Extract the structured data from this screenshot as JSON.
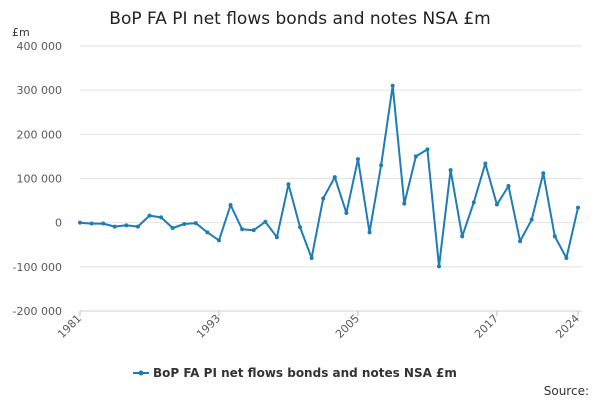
{
  "chart_data": {
    "type": "line",
    "title": "BoP FA PI net flows bonds and notes NSA £m",
    "unit_label": "£m",
    "source_label": "Source:",
    "ylim": [
      -200000,
      400000
    ],
    "yticks": [
      400000,
      300000,
      200000,
      100000,
      0,
      -100000,
      -200000
    ],
    "ytick_labels": [
      "400 000",
      "300 000",
      "200 000",
      "100 000",
      "0",
      "-100 000",
      "-200 000"
    ],
    "xlim": [
      1981,
      2024
    ],
    "xticks": [
      1981,
      1993,
      2005,
      2017,
      2024
    ],
    "xtick_labels": [
      "1981",
      "1993",
      "2005",
      "2017",
      "2024"
    ],
    "grid": true,
    "legend_position": "bottom",
    "color": "#1f7cb4",
    "series": [
      {
        "name": "BoP FA PI net flows bonds and notes NSA £m",
        "x": [
          1981,
          1982,
          1983,
          1984,
          1985,
          1986,
          1987,
          1988,
          1989,
          1990,
          1991,
          1992,
          1993,
          1994,
          1995,
          1996,
          1997,
          1998,
          1999,
          2000,
          2001,
          2002,
          2003,
          2004,
          2005,
          2006,
          2007,
          2008,
          2009,
          2010,
          2011,
          2012,
          2013,
          2014,
          2015,
          2016,
          2017,
          2018,
          2019,
          2020,
          2021,
          2022,
          2023,
          2024
        ],
        "values": [
          0,
          -2000,
          -2000,
          -9000,
          -6000,
          -9000,
          16000,
          12000,
          -12000,
          -3000,
          -1000,
          -22000,
          -40000,
          40000,
          -15000,
          -17000,
          2000,
          -33000,
          87000,
          -10000,
          -80000,
          55000,
          103000,
          22000,
          144000,
          -22000,
          130000,
          310000,
          43000,
          150000,
          166000,
          -99000,
          119000,
          -31000,
          46000,
          134000,
          41000,
          83000,
          -42000,
          7000,
          112000,
          -31000,
          -80000,
          34000
        ]
      }
    ]
  }
}
